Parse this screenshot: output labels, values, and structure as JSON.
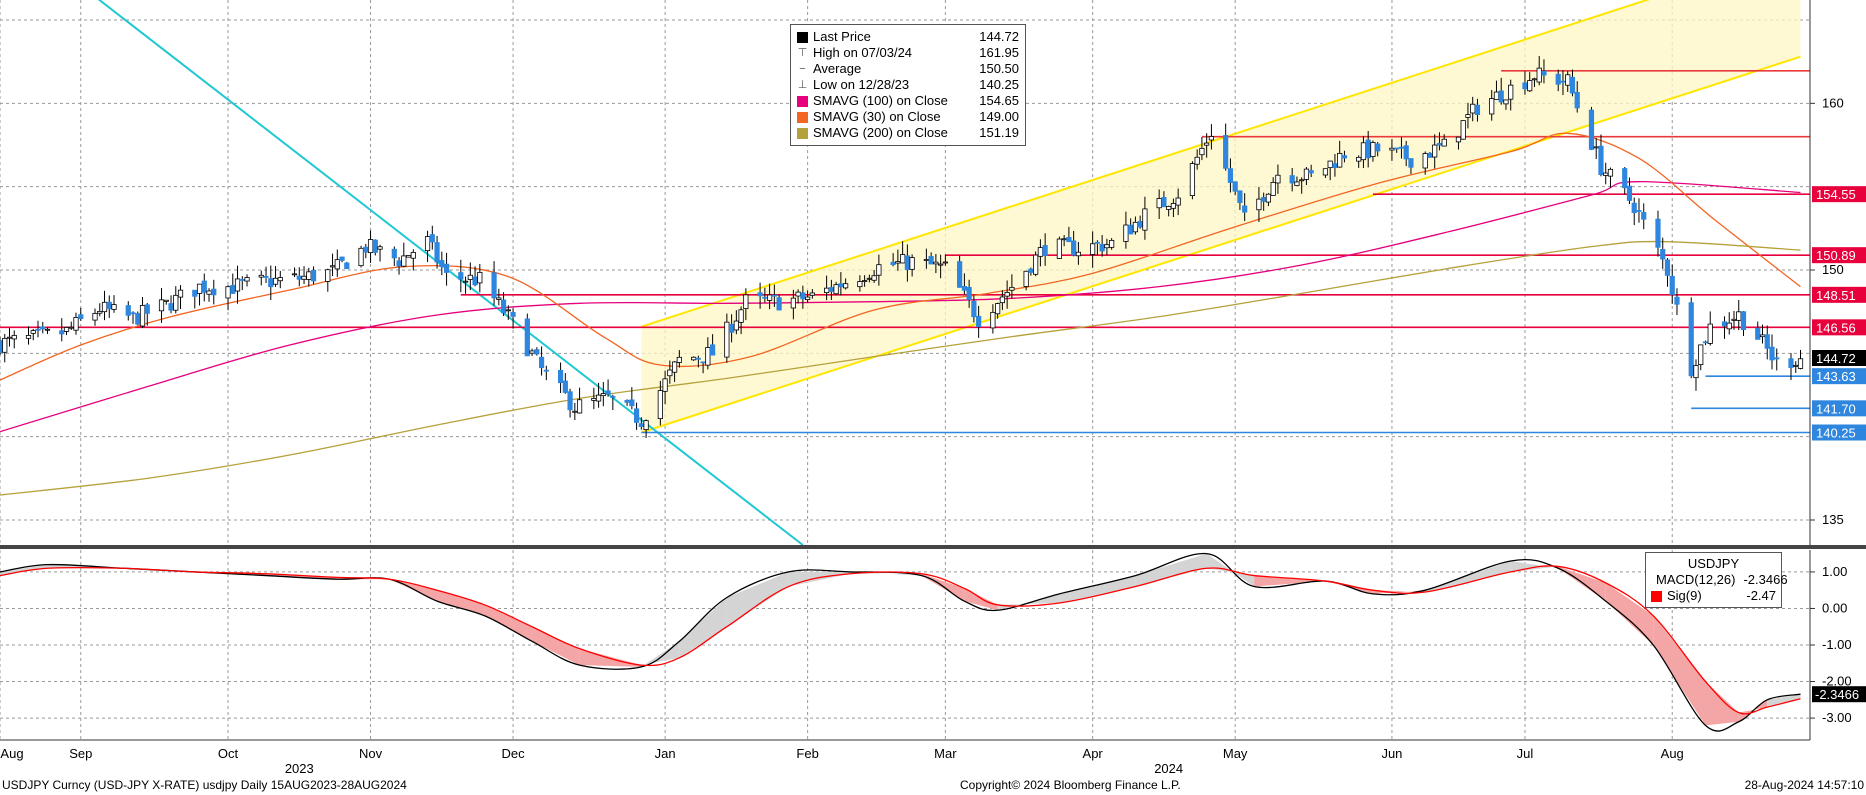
{
  "chart_data": [
    {
      "panel": "price",
      "type": "candlestick",
      "y_range": [
        133.5,
        166.2
      ],
      "y_ticks": [
        {
          "value": 160,
          "label": "160"
        },
        {
          "value": 150,
          "label": "150"
        },
        {
          "value": 135,
          "label": "135"
        }
      ],
      "grid": true,
      "x_months": [
        {
          "label": "Aug",
          "date": "2023-08-15"
        },
        {
          "label": "Sep",
          "date": "2023-09-01"
        },
        {
          "label": "Oct",
          "date": "2023-10-02"
        },
        {
          "label": "Nov",
          "date": "2023-11-01"
        },
        {
          "label": "Dec",
          "date": "2023-12-01"
        },
        {
          "label": "Jan",
          "date": "2024-01-02"
        },
        {
          "label": "Feb",
          "date": "2024-02-01"
        },
        {
          "label": "Mar",
          "date": "2024-03-01"
        },
        {
          "label": "Apr",
          "date": "2024-04-01"
        },
        {
          "label": "May",
          "date": "2024-05-01"
        },
        {
          "label": "Jun",
          "date": "2024-06-03"
        },
        {
          "label": "Jul",
          "date": "2024-07-01"
        },
        {
          "label": "Aug",
          "date": "2024-08-01"
        }
      ],
      "x_years": [
        {
          "label": "2023",
          "date": "2023-10-17"
        },
        {
          "label": "2024",
          "date": "2024-04-17"
        }
      ],
      "close_path": [
        [
          "2023-08-15",
          145.6
        ],
        [
          "2023-08-22",
          145.9
        ],
        [
          "2023-08-29",
          146.3
        ],
        [
          "2023-09-05",
          147.7
        ],
        [
          "2023-09-12",
          147.1
        ],
        [
          "2023-09-19",
          147.9
        ],
        [
          "2023-09-26",
          149.0
        ],
        [
          "2023-10-03",
          149.0
        ],
        [
          "2023-10-10",
          149.3
        ],
        [
          "2023-10-17",
          149.5
        ],
        [
          "2023-10-24",
          149.9
        ],
        [
          "2023-10-31",
          151.4
        ],
        [
          "2023-11-07",
          150.6
        ],
        [
          "2023-11-13",
          151.7
        ],
        [
          "2023-11-17",
          149.6
        ],
        [
          "2023-11-24",
          149.4
        ],
        [
          "2023-12-01",
          146.8
        ],
        [
          "2023-12-07",
          144.0
        ],
        [
          "2023-12-14",
          141.8
        ],
        [
          "2023-12-21",
          142.3
        ],
        [
          "2023-12-28",
          141.0
        ],
        [
          "2024-01-05",
          144.6
        ],
        [
          "2024-01-12",
          145.0
        ],
        [
          "2024-01-19",
          148.1
        ],
        [
          "2024-01-26",
          148.1
        ],
        [
          "2024-02-02",
          148.4
        ],
        [
          "2024-02-09",
          149.3
        ],
        [
          "2024-02-16",
          150.2
        ],
        [
          "2024-02-23",
          150.5
        ],
        [
          "2024-03-01",
          150.1
        ],
        [
          "2024-03-08",
          147.1
        ],
        [
          "2024-03-15",
          149.0
        ],
        [
          "2024-03-22",
          151.4
        ],
        [
          "2024-03-29",
          151.3
        ],
        [
          "2024-04-05",
          151.6
        ],
        [
          "2024-04-12",
          153.3
        ],
        [
          "2024-04-19",
          154.6
        ],
        [
          "2024-04-26",
          158.3
        ],
        [
          "2024-05-03",
          153.0
        ],
        [
          "2024-05-10",
          155.8
        ],
        [
          "2024-05-17",
          155.6
        ],
        [
          "2024-05-24",
          157.0
        ],
        [
          "2024-05-31",
          157.2
        ],
        [
          "2024-06-07",
          156.7
        ],
        [
          "2024-06-14",
          157.4
        ],
        [
          "2024-06-21",
          159.8
        ],
        [
          "2024-06-28",
          160.9
        ],
        [
          "2024-07-03",
          161.7
        ],
        [
          "2024-07-10",
          161.3
        ],
        [
          "2024-07-17",
          156.2
        ],
        [
          "2024-07-24",
          153.9
        ],
        [
          "2024-07-31",
          150.0
        ],
        [
          "2024-08-05",
          144.2
        ],
        [
          "2024-08-09",
          146.6
        ],
        [
          "2024-08-15",
          147.3
        ],
        [
          "2024-08-19",
          146.0
        ],
        [
          "2024-08-23",
          144.4
        ],
        [
          "2024-08-28",
          144.72
        ]
      ],
      "series": [
        {
          "name": "SMAVG (100)  on Close",
          "color": "#e6007e",
          "points": [
            [
              "2023-08-15",
              140.3
            ],
            [
              "2023-09-15",
              143.0
            ],
            [
              "2023-10-15",
              145.5
            ],
            [
              "2023-11-15",
              147.3
            ],
            [
              "2023-12-15",
              148.0
            ],
            [
              "2024-01-15",
              148.0
            ],
            [
              "2024-02-15",
              148.1
            ],
            [
              "2024-03-15",
              148.3
            ],
            [
              "2024-04-15",
              149.0
            ],
            [
              "2024-05-15",
              150.3
            ],
            [
              "2024-06-15",
              152.3
            ],
            [
              "2024-07-15",
              154.5
            ],
            [
              "2024-07-25",
              155.3
            ],
            [
              "2024-08-28",
              154.65
            ]
          ]
        },
        {
          "name": "SMAVG (30)  on Close",
          "color": "#f26522",
          "points": [
            [
              "2023-08-15",
              143.4
            ],
            [
              "2023-09-01",
              145.5
            ],
            [
              "2023-09-20",
              147.2
            ],
            [
              "2023-10-15",
              148.8
            ],
            [
              "2023-11-08",
              150.2
            ],
            [
              "2023-11-30",
              149.6
            ],
            [
              "2023-12-20",
              146.0
            ],
            [
              "2024-01-01",
              144.3
            ],
            [
              "2024-01-20",
              144.8
            ],
            [
              "2024-02-15",
              147.6
            ],
            [
              "2024-03-10",
              148.6
            ],
            [
              "2024-04-01",
              149.8
            ],
            [
              "2024-04-30",
              152.5
            ],
            [
              "2024-05-31",
              155.2
            ],
            [
              "2024-06-28",
              157.1
            ],
            [
              "2024-07-10",
              158.2
            ],
            [
              "2024-07-25",
              156.7
            ],
            [
              "2024-08-10",
              153.0
            ],
            [
              "2024-08-28",
              149.0
            ]
          ]
        },
        {
          "name": "SMAVG (200)  on Close",
          "color": "#b5a13a",
          "points": [
            [
              "2023-08-15",
              136.5
            ],
            [
              "2023-09-15",
              137.5
            ],
            [
              "2023-10-15",
              138.9
            ],
            [
              "2023-11-15",
              140.7
            ],
            [
              "2023-12-15",
              142.3
            ],
            [
              "2024-01-15",
              143.5
            ],
            [
              "2024-02-15",
              144.8
            ],
            [
              "2024-03-15",
              146.0
            ],
            [
              "2024-04-15",
              147.2
            ],
            [
              "2024-05-15",
              148.6
            ],
            [
              "2024-06-15",
              150.1
            ],
            [
              "2024-07-15",
              151.4
            ],
            [
              "2024-07-31",
              151.7
            ],
            [
              "2024-08-28",
              151.19
            ]
          ]
        }
      ],
      "horizontal_levels": [
        {
          "value": 161.95,
          "color": "#e83a3a",
          "from": "2024-06-26",
          "label": ""
        },
        {
          "value": 158.0,
          "color": "#e83a3a",
          "from": "2024-04-24",
          "label": ""
        },
        {
          "value": 154.55,
          "color": "#e8003d",
          "from": "2024-05-30",
          "label": "154.55"
        },
        {
          "value": 150.89,
          "color": "#e8003d",
          "from": "2024-03-01",
          "label": "150.89"
        },
        {
          "value": 148.51,
          "color": "#e8003d",
          "from": "2023-11-20",
          "label": "148.51"
        },
        {
          "value": 146.56,
          "color": "#e8003d",
          "from": "2023-08-15",
          "label": "146.56"
        },
        {
          "value": 143.63,
          "color": "#2e86de",
          "from": "2024-08-08",
          "label": "143.63"
        },
        {
          "value": 141.7,
          "color": "#2e86de",
          "from": "2024-08-05",
          "label": "141.70"
        },
        {
          "value": 140.25,
          "color": "#2e86de",
          "from": "2023-12-28",
          "label": "140.25"
        }
      ],
      "last_price_tag": {
        "value": 144.72,
        "label": "144.72"
      },
      "trend_channel": {
        "color": "#ffe600",
        "lower": [
          [
            "2023-12-28",
            140.25
          ],
          [
            "2024-08-28",
            162.8
          ]
        ],
        "upper": [
          [
            "2023-12-28",
            146.6
          ],
          [
            "2024-08-28",
            169.2
          ]
        ]
      },
      "downtrend_line": {
        "color": "#1fc8d2",
        "points": [
          [
            "2023-08-21",
            169.5
          ],
          [
            "2024-01-31",
            133.5
          ]
        ]
      },
      "legend": {
        "items": [
          {
            "icon": "square",
            "color": "#000000",
            "name": "Last Price",
            "value": "144.72"
          },
          {
            "icon": "high",
            "color": "#555555",
            "name": "High on 07/03/24",
            "value": "161.95"
          },
          {
            "icon": "average",
            "color": "#555555",
            "name": "Average",
            "value": "150.50"
          },
          {
            "icon": "low",
            "color": "#555555",
            "name": "Low on 12/28/23",
            "value": "140.25"
          },
          {
            "icon": "square",
            "color": "#e6007e",
            "name": "SMAVG (100)  on Close",
            "value": "154.65"
          },
          {
            "icon": "square",
            "color": "#f26522",
            "name": "SMAVG (30)  on Close",
            "value": "149.00"
          },
          {
            "icon": "square",
            "color": "#b5a13a",
            "name": "SMAVG (200)  on Close",
            "value": "151.19"
          }
        ]
      }
    },
    {
      "panel": "macd",
      "type": "line",
      "y_range": [
        -3.6,
        1.6
      ],
      "y_ticks": [
        {
          "value": 1.0,
          "label": "1.00"
        },
        {
          "value": 0.0,
          "label": "0.00"
        },
        {
          "value": -1.0,
          "label": "-1.00"
        },
        {
          "value": -2.0,
          "label": "-2.00"
        },
        {
          "value": -3.0,
          "label": "-3.00"
        }
      ],
      "grid": true,
      "series": [
        {
          "name": "MACD(12,26)",
          "color": "#000000",
          "points": [
            [
              "2023-08-15",
              1.0
            ],
            [
              "2023-08-25",
              1.2
            ],
            [
              "2023-09-10",
              1.1
            ],
            [
              "2023-09-25",
              1.0
            ],
            [
              "2023-10-10",
              0.9
            ],
            [
              "2023-10-25",
              0.8
            ],
            [
              "2023-11-05",
              0.8
            ],
            [
              "2023-11-15",
              0.2
            ],
            [
              "2023-11-25",
              -0.2
            ],
            [
              "2023-12-05",
              -0.9
            ],
            [
              "2023-12-15",
              -1.55
            ],
            [
              "2023-12-28",
              -1.6
            ],
            [
              "2024-01-05",
              -0.9
            ],
            [
              "2024-01-15",
              0.3
            ],
            [
              "2024-01-28",
              1.0
            ],
            [
              "2024-02-10",
              1.0
            ],
            [
              "2024-02-25",
              0.9
            ],
            [
              "2024-03-05",
              0.2
            ],
            [
              "2024-03-12",
              -0.05
            ],
            [
              "2024-03-25",
              0.4
            ],
            [
              "2024-04-10",
              0.9
            ],
            [
              "2024-04-25",
              1.5
            ],
            [
              "2024-05-05",
              0.6
            ],
            [
              "2024-05-20",
              0.75
            ],
            [
              "2024-05-30",
              0.4
            ],
            [
              "2024-06-10",
              0.5
            ],
            [
              "2024-06-28",
              1.3
            ],
            [
              "2024-07-08",
              1.1
            ],
            [
              "2024-07-18",
              0.2
            ],
            [
              "2024-07-28",
              -1.0
            ],
            [
              "2024-08-08",
              -3.2
            ],
            [
              "2024-08-15",
              -3.1
            ],
            [
              "2024-08-21",
              -2.5
            ],
            [
              "2024-08-28",
              -2.3466
            ]
          ]
        },
        {
          "name": "Sig(9)",
          "color": "#ff0000",
          "points": [
            [
              "2023-08-15",
              0.9
            ],
            [
              "2023-08-25",
              1.1
            ],
            [
              "2023-09-10",
              1.1
            ],
            [
              "2023-09-25",
              1.0
            ],
            [
              "2023-10-10",
              0.95
            ],
            [
              "2023-10-25",
              0.85
            ],
            [
              "2023-11-05",
              0.8
            ],
            [
              "2023-11-15",
              0.5
            ],
            [
              "2023-11-25",
              0.1
            ],
            [
              "2023-12-05",
              -0.5
            ],
            [
              "2023-12-15",
              -1.1
            ],
            [
              "2023-12-28",
              -1.55
            ],
            [
              "2024-01-05",
              -1.35
            ],
            [
              "2024-01-15",
              -0.5
            ],
            [
              "2024-01-28",
              0.6
            ],
            [
              "2024-02-10",
              0.95
            ],
            [
              "2024-02-25",
              0.95
            ],
            [
              "2024-03-05",
              0.55
            ],
            [
              "2024-03-12",
              0.1
            ],
            [
              "2024-03-25",
              0.15
            ],
            [
              "2024-04-10",
              0.6
            ],
            [
              "2024-04-25",
              1.1
            ],
            [
              "2024-05-05",
              0.9
            ],
            [
              "2024-05-20",
              0.75
            ],
            [
              "2024-05-30",
              0.5
            ],
            [
              "2024-06-10",
              0.45
            ],
            [
              "2024-06-28",
              1.0
            ],
            [
              "2024-07-08",
              1.15
            ],
            [
              "2024-07-18",
              0.7
            ],
            [
              "2024-07-28",
              -0.2
            ],
            [
              "2024-08-08",
              -2.0
            ],
            [
              "2024-08-15",
              -2.85
            ],
            [
              "2024-08-21",
              -2.7
            ],
            [
              "2024-08-28",
              -2.47
            ]
          ]
        }
      ],
      "last_value_tag": {
        "value": -2.3466,
        "label": "-2.3466"
      },
      "legend": {
        "title": "USDJPY",
        "items": [
          {
            "color": "#000000",
            "name": "MACD(12,26)",
            "value": "-2.3466"
          },
          {
            "color": "#ff0000",
            "name": "Sig(9)",
            "value": "-2.47"
          }
        ]
      }
    }
  ],
  "footer": {
    "left": "USDJPY Curncy (USD-JPY X-RATE) usdjpy  Daily 15AUG2023-28AUG2024",
    "center": "Copyright© 2024 Bloomberg Finance L.P.",
    "right": "28-Aug-2024 14:57:10"
  }
}
